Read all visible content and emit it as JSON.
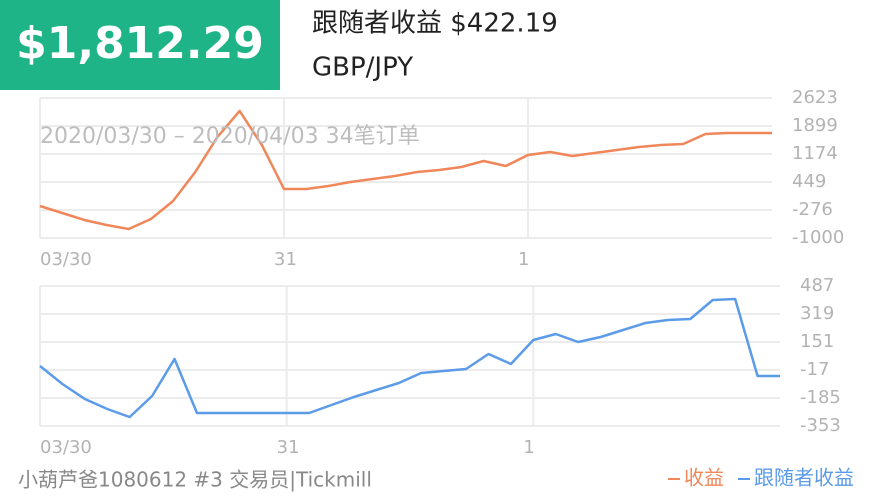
{
  "header": {
    "amount": "$1,812.29",
    "title": "跟随者收益 $422.19",
    "symbol": "GBP/JPY",
    "subtitle": "2020/03/30 – 2020/04/03 34笔订单"
  },
  "footer": "小葫芦爸1080612 #3 交易员|Tickmill",
  "chart_data": [
    {
      "type": "line",
      "categories": [
        "03/30",
        null,
        null,
        null,
        null,
        null,
        null,
        null,
        null,
        null,
        null,
        "31",
        null,
        null,
        null,
        null,
        null,
        null,
        null,
        null,
        null,
        null,
        "1",
        null,
        null,
        null,
        null,
        null,
        null,
        null,
        null,
        null,
        null,
        null
      ],
      "series": [
        {
          "name": "收益",
          "color": "#f0875a",
          "values": [
            -172,
            -353,
            -534,
            -664,
            -767,
            -508,
            -43,
            708,
            1614,
            2287,
            1407,
            268,
            268,
            346,
            449,
            527,
            604,
            708,
            760,
            837,
            993,
            863,
            1148,
            1225,
            1122,
            1200,
            1277,
            1355,
            1407,
            1433,
            1691,
            1717,
            1717,
            1717
          ]
        }
      ],
      "ylim": [
        -1000,
        2623
      ],
      "yticks": [
        -1000,
        -276,
        449,
        1174,
        1899,
        2623
      ],
      "grid": true
    },
    {
      "type": "line",
      "categories": [
        "03/30",
        null,
        null,
        null,
        null,
        null,
        null,
        null,
        null,
        null,
        null,
        "31",
        null,
        null,
        null,
        null,
        null,
        null,
        null,
        null,
        null,
        null,
        "1",
        null,
        null,
        null,
        null,
        null,
        null,
        null,
        null,
        null,
        null,
        null
      ],
      "series": [
        {
          "name": "跟随者收益",
          "color": "#5b9be8",
          "values": [
            7,
            -101,
            -191,
            -251,
            -299,
            -173,
            49,
            -275,
            -275,
            -275,
            -275,
            -275,
            -275,
            -227,
            -179,
            -137,
            -95,
            -35,
            -23,
            -11,
            79,
            19,
            163,
            199,
            151,
            181,
            223,
            265,
            283,
            289,
            403,
            409,
            -53,
            -53
          ]
        }
      ],
      "ylim": [
        -353,
        487
      ],
      "yticks": [
        -353,
        -185,
        -17,
        151,
        319,
        487
      ],
      "grid": true
    }
  ]
}
